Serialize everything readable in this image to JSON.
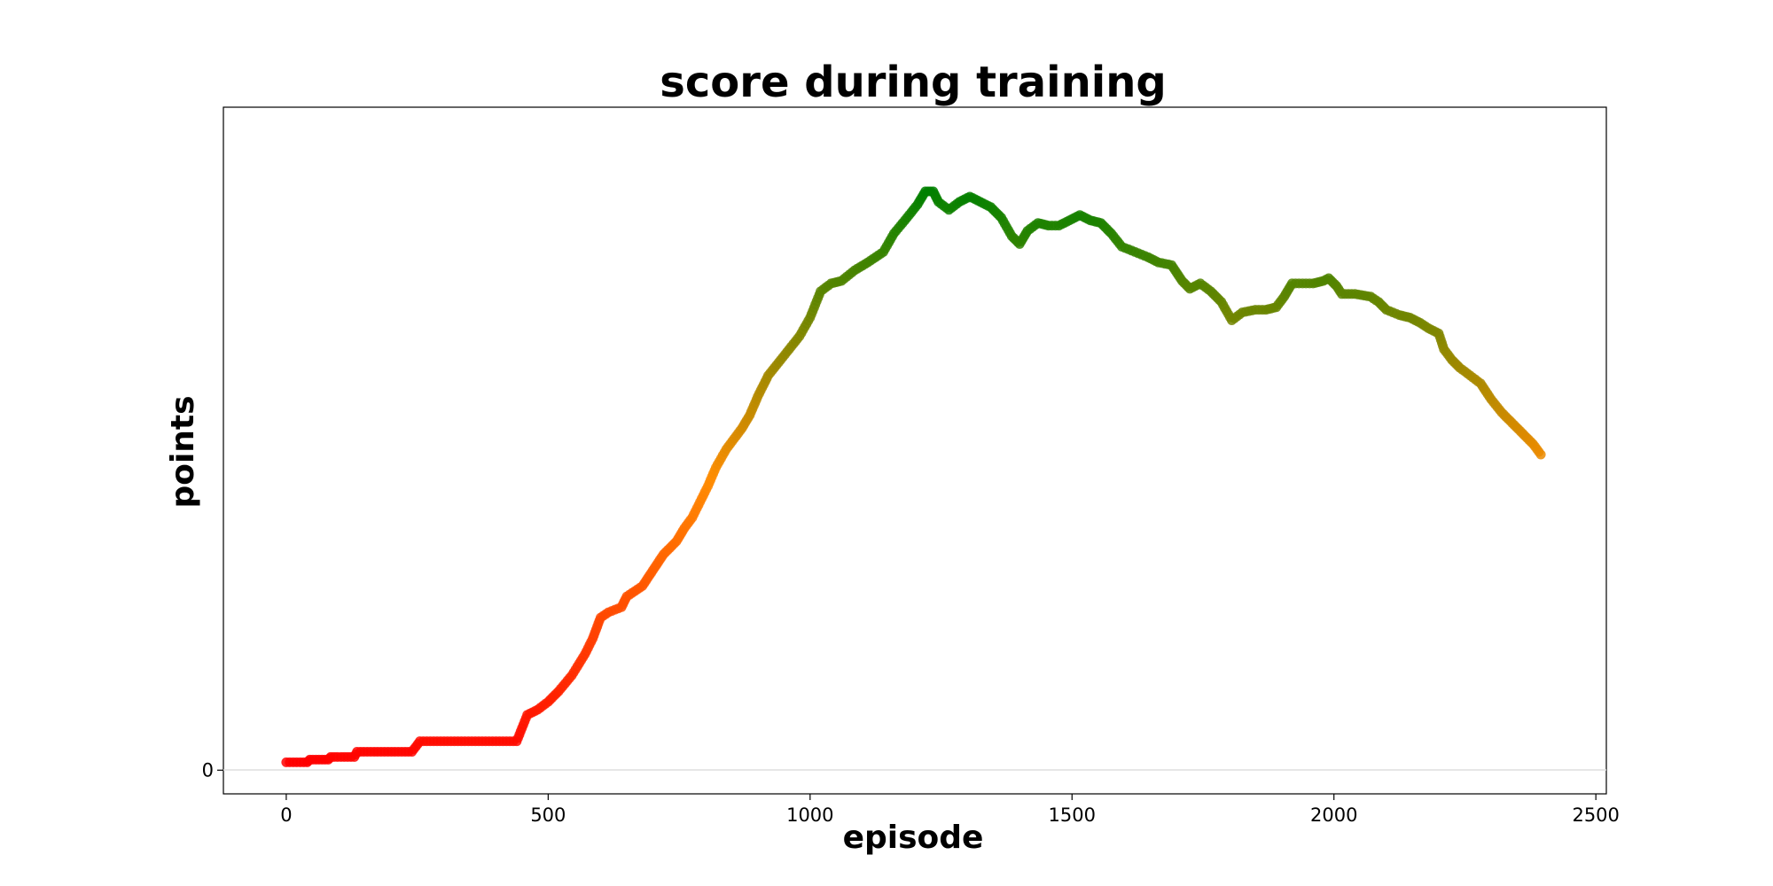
{
  "chart_data": {
    "type": "scatter",
    "title": "score during training",
    "xlabel": "episode",
    "ylabel": "points",
    "xlim": [
      -120,
      2520
    ],
    "ylim": [
      -4.5,
      126
    ],
    "x_ticks": [
      0,
      500,
      1000,
      1500,
      2000,
      2500
    ],
    "y_ticks": [
      0
    ],
    "zero_line": true,
    "grid": false,
    "legend": "none",
    "colors": {
      "low": "#ff0000",
      "mid": "#ff8c00",
      "high": "#008000"
    },
    "points": [
      [
        0,
        1.5
      ],
      [
        40,
        1.5
      ],
      [
        45,
        2.0
      ],
      [
        80,
        2.0
      ],
      [
        85,
        2.5
      ],
      [
        130,
        2.5
      ],
      [
        135,
        3.5
      ],
      [
        240,
        3.5
      ],
      [
        255,
        5.5
      ],
      [
        440,
        5.5
      ],
      [
        450,
        8
      ],
      [
        460,
        10.5
      ],
      [
        480,
        11.5
      ],
      [
        500,
        13
      ],
      [
        520,
        15
      ],
      [
        545,
        18
      ],
      [
        570,
        22
      ],
      [
        585,
        25
      ],
      [
        600,
        29
      ],
      [
        615,
        30
      ],
      [
        640,
        31
      ],
      [
        650,
        33
      ],
      [
        680,
        35
      ],
      [
        700,
        38
      ],
      [
        720,
        41
      ],
      [
        745,
        43.5
      ],
      [
        760,
        46
      ],
      [
        775,
        48
      ],
      [
        790,
        51
      ],
      [
        805,
        54
      ],
      [
        820,
        57.5
      ],
      [
        840,
        61
      ],
      [
        855,
        63
      ],
      [
        870,
        65
      ],
      [
        885,
        67.5
      ],
      [
        900,
        71
      ],
      [
        920,
        75
      ],
      [
        940,
        77.5
      ],
      [
        960,
        80
      ],
      [
        980,
        82.5
      ],
      [
        1000,
        86
      ],
      [
        1020,
        91
      ],
      [
        1040,
        92.5
      ],
      [
        1060,
        93
      ],
      [
        1085,
        95
      ],
      [
        1110,
        96.5
      ],
      [
        1140,
        98.5
      ],
      [
        1160,
        102
      ],
      [
        1185,
        105
      ],
      [
        1205,
        107.5
      ],
      [
        1220,
        110
      ],
      [
        1235,
        110
      ],
      [
        1245,
        108
      ],
      [
        1265,
        106.5
      ],
      [
        1285,
        108
      ],
      [
        1305,
        109
      ],
      [
        1325,
        108
      ],
      [
        1345,
        107
      ],
      [
        1365,
        105
      ],
      [
        1385,
        101.5
      ],
      [
        1400,
        100
      ],
      [
        1415,
        102.5
      ],
      [
        1435,
        104
      ],
      [
        1455,
        103.5
      ],
      [
        1475,
        103.5
      ],
      [
        1495,
        104.5
      ],
      [
        1515,
        105.5
      ],
      [
        1535,
        104.5
      ],
      [
        1555,
        104
      ],
      [
        1575,
        102
      ],
      [
        1595,
        99.5
      ],
      [
        1620,
        98.5
      ],
      [
        1645,
        97.5
      ],
      [
        1665,
        96.5
      ],
      [
        1690,
        96
      ],
      [
        1710,
        93
      ],
      [
        1725,
        91.5
      ],
      [
        1745,
        92.5
      ],
      [
        1765,
        91
      ],
      [
        1785,
        89
      ],
      [
        1805,
        85.5
      ],
      [
        1825,
        87
      ],
      [
        1850,
        87.5
      ],
      [
        1870,
        87.5
      ],
      [
        1890,
        88
      ],
      [
        1905,
        90
      ],
      [
        1920,
        92.5
      ],
      [
        1940,
        92.5
      ],
      [
        1960,
        92.5
      ],
      [
        1980,
        93
      ],
      [
        1990,
        93.5
      ],
      [
        2005,
        92
      ],
      [
        2015,
        90.5
      ],
      [
        2040,
        90.5
      ],
      [
        2070,
        90
      ],
      [
        2085,
        89
      ],
      [
        2100,
        87.5
      ],
      [
        2125,
        86.5
      ],
      [
        2145,
        86
      ],
      [
        2165,
        85
      ],
      [
        2180,
        84
      ],
      [
        2200,
        83
      ],
      [
        2210,
        80
      ],
      [
        2225,
        78
      ],
      [
        2240,
        76.5
      ],
      [
        2260,
        75
      ],
      [
        2280,
        73.5
      ],
      [
        2300,
        70.5
      ],
      [
        2320,
        68
      ],
      [
        2340,
        66
      ],
      [
        2360,
        64
      ],
      [
        2380,
        62
      ],
      [
        2395,
        60
      ]
    ]
  }
}
